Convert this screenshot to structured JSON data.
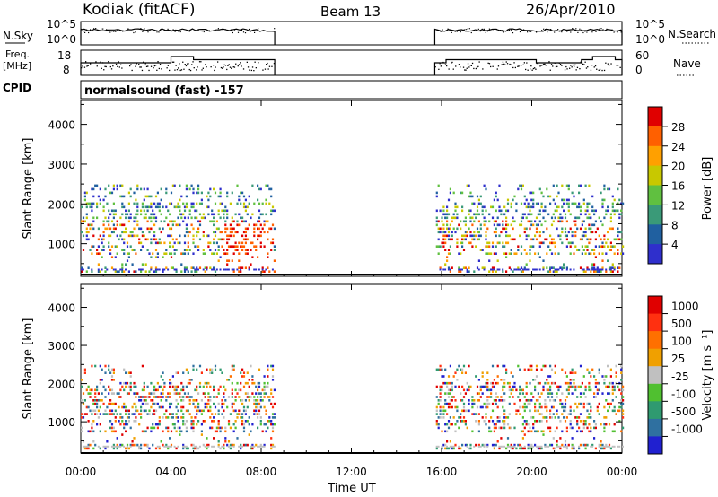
{
  "header": {
    "station": "Kodiak (fitACF)",
    "beam": "Beam 13",
    "date": "26/Apr/2010"
  },
  "noise_panel": {
    "left_label": "N.Sky",
    "ticks_left": [
      "10^5",
      "10^0"
    ],
    "ticks_right": [
      "10^5",
      "10^0"
    ],
    "right_label": "N.Search"
  },
  "freq_panel": {
    "left_label_1": "Freq.",
    "left_label_2": "[MHz]",
    "ticks_left": [
      "18",
      "8"
    ],
    "ticks_right": [
      "60",
      "0"
    ],
    "right_label": "Nave"
  },
  "cpid_panel": {
    "left_label": "CPID",
    "text": "normalsound (fast) -157"
  },
  "range_axis": {
    "label": "Slant Range [km]",
    "ticks": [
      "4000",
      "3000",
      "2000",
      "1000"
    ]
  },
  "time_axis": {
    "label": "Time UT",
    "ticks": [
      "00:00",
      "04:00",
      "08:00",
      "12:00",
      "16:00",
      "20:00",
      "00:00"
    ]
  },
  "power_scale": {
    "label": "Power [dB]",
    "ticks": [
      "28",
      "24",
      "20",
      "16",
      "12",
      "8",
      "4"
    ],
    "colors": [
      "#2f2fcc",
      "#2060a0",
      "#3a9a78",
      "#60c040",
      "#c8c800",
      "#ffa000",
      "#ff6000",
      "#e00000"
    ]
  },
  "velocity_scale": {
    "label": "Velocity [m s⁻¹]",
    "ticks": [
      "1000",
      "500",
      "100",
      "25",
      "-25",
      "-100",
      "-500",
      "-1000"
    ],
    "colors": [
      "#2020d0",
      "#2f70a0",
      "#2f9a70",
      "#50c030",
      "#c0c0c0",
      "#f0a000",
      "#ff7000",
      "#ff3010",
      "#e00000"
    ]
  },
  "chart_data": {
    "type": "heatmap",
    "x_unit": "hours UT",
    "xlim": [
      0,
      24
    ],
    "ylim": [
      180,
      4600
    ],
    "data_segments": [
      [
        0,
        8.6
      ],
      [
        15.7,
        24
      ]
    ]
  }
}
